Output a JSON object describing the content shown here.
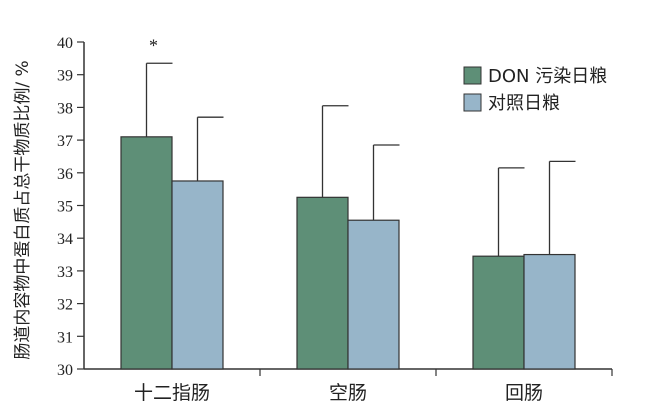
{
  "chart_data": {
    "type": "bar",
    "xlabel": "",
    "ylabel": "肠道内容物中蛋白质占总干物质比例/ %",
    "ylim": [
      30,
      40
    ],
    "yticks": [
      "30",
      "31",
      "32",
      "33",
      "34",
      "35",
      "36",
      "37",
      "38",
      "39",
      "40"
    ],
    "categories": [
      "十二指肠",
      "空肠",
      "回肠"
    ],
    "series": [
      {
        "name": "DON 污染日粮",
        "color": "#5e8f77",
        "values": [
          37.1,
          35.25,
          33.45
        ],
        "error": [
          2.25,
          2.8,
          2.7
        ]
      },
      {
        "name": "对照日粮",
        "color": "#97b5c9",
        "values": [
          35.75,
          34.55,
          33.5
        ],
        "error": [
          1.95,
          2.3,
          2.85
        ]
      }
    ],
    "annotations": [
      {
        "text": "*",
        "category": 0
      }
    ],
    "legend_position": "top-right",
    "grid": false
  }
}
